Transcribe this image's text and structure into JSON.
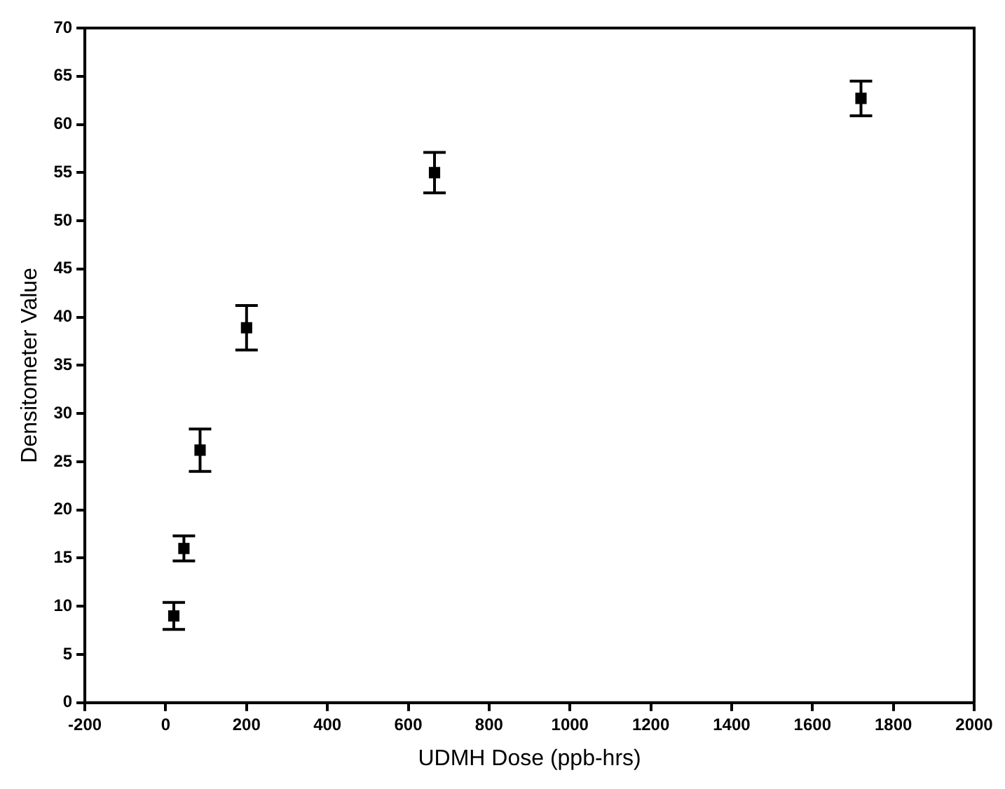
{
  "chart_data": {
    "type": "scatter",
    "xlabel": "UDMH Dose (ppb-hrs)",
    "ylabel": "Densitometer Value",
    "x": [
      20,
      45,
      85,
      200,
      665,
      1720
    ],
    "values": [
      9,
      16,
      26.2,
      38.9,
      55,
      62.7
    ],
    "errors": [
      1.4,
      1.3,
      2.2,
      2.3,
      2.1,
      1.8
    ],
    "color": "#000000",
    "marker": "square",
    "grid": false,
    "legend": false,
    "xlim": [
      -200,
      2000
    ],
    "xticks": [
      -200,
      0,
      200,
      400,
      600,
      800,
      1000,
      1200,
      1400,
      1600,
      1800,
      2000
    ],
    "ylim": [
      0,
      70
    ],
    "yticks": [
      0,
      5,
      10,
      15,
      20,
      25,
      30,
      35,
      40,
      45,
      50,
      55,
      60,
      65,
      70
    ]
  }
}
